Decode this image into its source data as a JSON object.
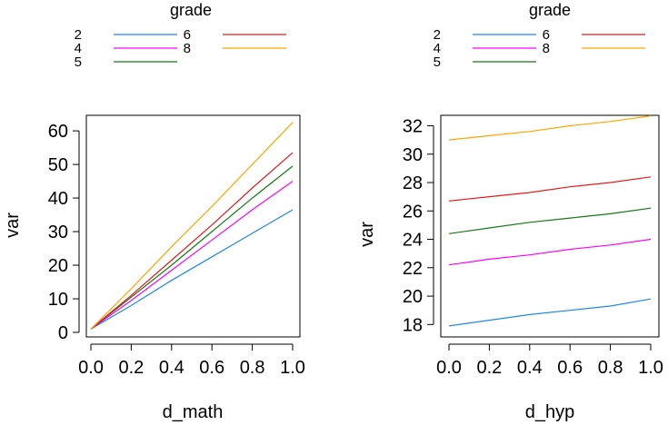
{
  "colors": {
    "grade_2": "#1e88e5",
    "grade_4": "#ff00ff",
    "grade_5": "#137a13",
    "grade_6": "#e41a1c",
    "grade_8": "#ffa500"
  },
  "chart_data": [
    {
      "type": "line",
      "legend": {
        "title": "grade",
        "entries": [
          "2",
          "4",
          "5",
          "6",
          "8"
        ],
        "placement": "top"
      },
      "xlabel": "d_math",
      "ylabel": "var",
      "xlim": [
        0,
        1
      ],
      "ylim": [
        0,
        63
      ],
      "xticks": [
        "0.0",
        "0.2",
        "0.4",
        "0.6",
        "0.8",
        "1.0"
      ],
      "yticks": [
        "0",
        "10",
        "20",
        "30",
        "40",
        "50",
        "60"
      ],
      "x": [
        0,
        0.2,
        0.4,
        0.6,
        0.8,
        1.0
      ],
      "series": [
        {
          "name": "2",
          "color_key": "grade_2",
          "values": [
            1,
            8,
            15.5,
            22.5,
            29.5,
            36.5
          ]
        },
        {
          "name": "4",
          "color_key": "grade_4",
          "values": [
            1,
            9.5,
            18.5,
            27.5,
            36.5,
            45
          ]
        },
        {
          "name": "5",
          "color_key": "grade_5",
          "values": [
            1,
            10.5,
            20,
            30,
            40,
            49.5
          ]
        },
        {
          "name": "6",
          "color_key": "grade_6",
          "values": [
            1,
            11,
            21.5,
            32,
            43,
            53.5
          ]
        },
        {
          "name": "8",
          "color_key": "grade_8",
          "values": [
            1,
            13,
            25.5,
            37.5,
            50,
            62.5
          ]
        }
      ]
    },
    {
      "type": "line",
      "legend": {
        "title": "grade",
        "entries": [
          "2",
          "4",
          "5",
          "6",
          "8"
        ],
        "placement": "top"
      },
      "xlabel": "d_hyp",
      "ylabel": "var",
      "xlim": [
        0,
        1
      ],
      "ylim": [
        17.7,
        32.8
      ],
      "xticks": [
        "0.0",
        "0.2",
        "0.4",
        "0.6",
        "0.8",
        "1.0"
      ],
      "yticks": [
        "18",
        "20",
        "22",
        "24",
        "26",
        "28",
        "30",
        "32"
      ],
      "x": [
        0,
        0.2,
        0.4,
        0.6,
        0.8,
        1.0
      ],
      "series": [
        {
          "name": "2",
          "color_key": "grade_2",
          "values": [
            17.9,
            18.3,
            18.7,
            19.0,
            19.3,
            19.8
          ]
        },
        {
          "name": "4",
          "color_key": "grade_4",
          "values": [
            22.2,
            22.6,
            22.9,
            23.3,
            23.6,
            24.0
          ]
        },
        {
          "name": "5",
          "color_key": "grade_5",
          "values": [
            24.4,
            24.8,
            25.2,
            25.5,
            25.8,
            26.2
          ]
        },
        {
          "name": "6",
          "color_key": "grade_6",
          "values": [
            26.7,
            27.0,
            27.3,
            27.7,
            28.0,
            28.4
          ]
        },
        {
          "name": "8",
          "color_key": "grade_8",
          "values": [
            31.0,
            31.3,
            31.6,
            32.0,
            32.3,
            32.7
          ]
        }
      ]
    }
  ]
}
